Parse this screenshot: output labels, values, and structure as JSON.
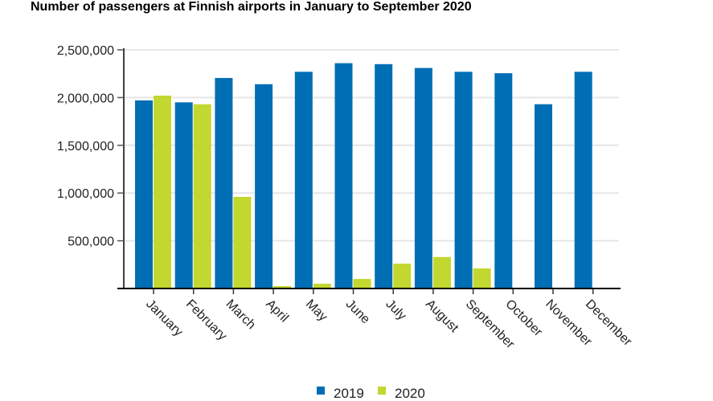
{
  "chart_data": {
    "type": "bar",
    "title": "Number of passengers at Finnish airports in January to September 2020",
    "xlabel": "",
    "ylabel": "",
    "categories": [
      "January",
      "February",
      "March",
      "April",
      "May",
      "June",
      "July",
      "August",
      "September",
      "October",
      "November",
      "December"
    ],
    "series": [
      {
        "name": "2019",
        "color": "#006eb4",
        "values": [
          1970000,
          1950000,
          2205000,
          2140000,
          2270000,
          2360000,
          2350000,
          2310000,
          2270000,
          2255000,
          1930000,
          2270000
        ]
      },
      {
        "name": "2020",
        "color": "#c2d72f",
        "values": [
          2020000,
          1930000,
          960000,
          25000,
          50000,
          100000,
          260000,
          330000,
          210000,
          null,
          null,
          null
        ]
      }
    ],
    "ylim": [
      0,
      2500000
    ],
    "yticks": [
      500000,
      1000000,
      1500000,
      2000000,
      2500000
    ],
    "ytick_labels": [
      "500,000",
      "1,000,000",
      "1,500,000",
      "2,000,000",
      "2,500,000"
    ],
    "grid": true,
    "legend_position": "bottom-center"
  }
}
